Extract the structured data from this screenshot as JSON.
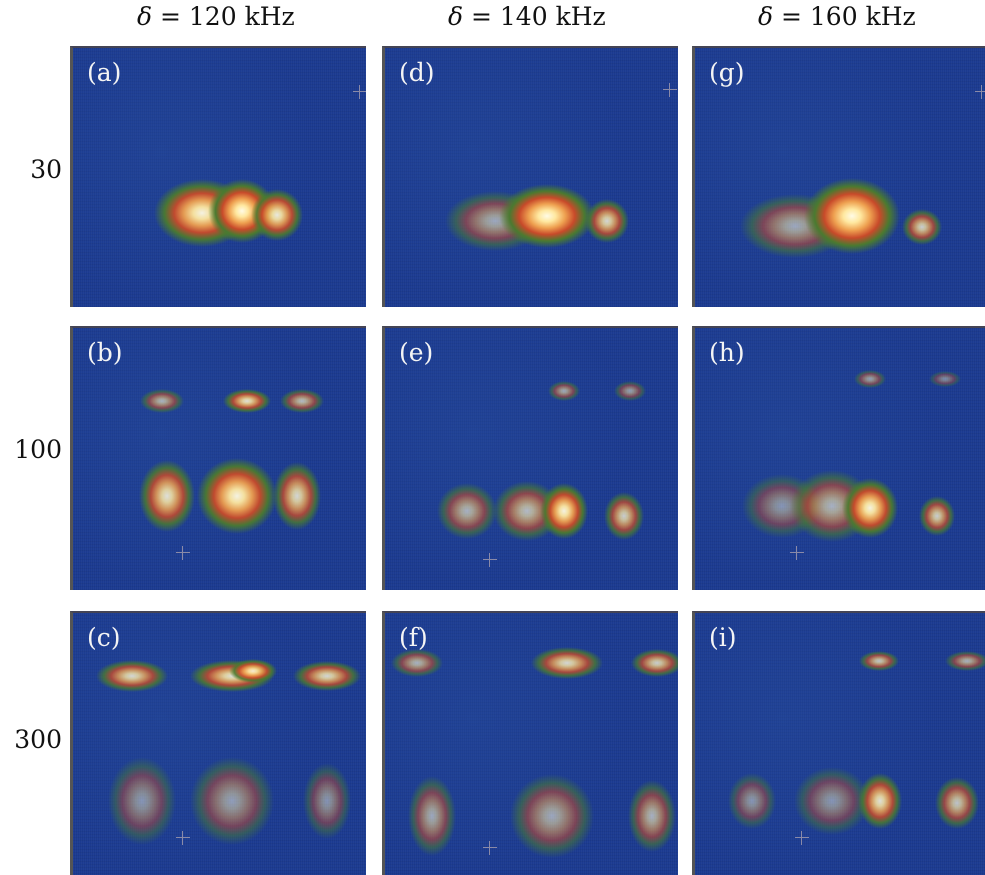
{
  "columns": [
    {
      "symbol": "δ",
      "eq": " = ",
      "value": "120",
      "unit": " kHz"
    },
    {
      "symbol": "δ",
      "eq": " = ",
      "value": "140",
      "unit": " kHz"
    },
    {
      "symbol": "δ",
      "eq": " = ",
      "value": "160",
      "unit": " kHz"
    }
  ],
  "rows": [
    "30",
    "100",
    "300"
  ],
  "panels": [
    "(a)",
    "(b)",
    "(c)",
    "(d)",
    "(e)",
    "(f)",
    "(g)",
    "(h)",
    "(i)"
  ],
  "colors": {
    "background": "#1b3a90",
    "peak": "#fffbe6",
    "mid": "#eea050",
    "edge": "#4a7a30"
  }
}
